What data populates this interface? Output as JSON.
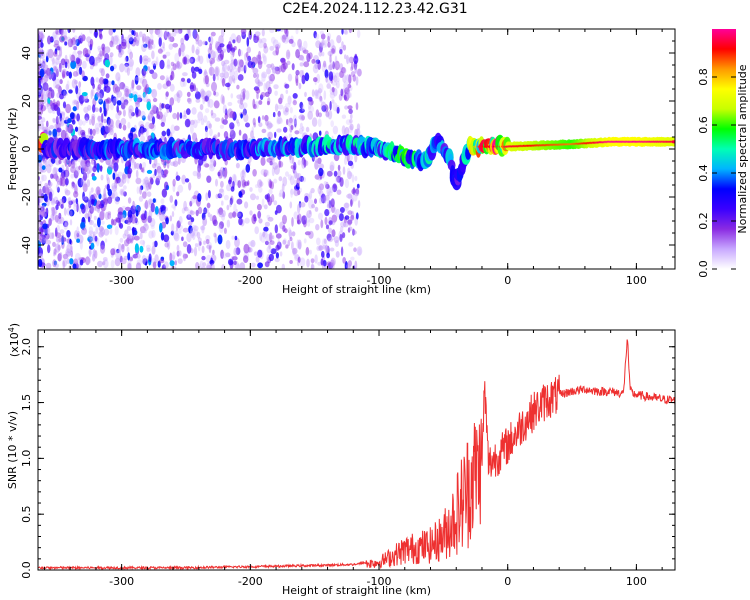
{
  "title": "C2E4.2024.112.23.42.G31",
  "colors": {
    "snr_line": "#ee3030",
    "background": "#ffffff",
    "axis": "#000000",
    "colormap": [
      "#ffffff",
      "#c8a8ff",
      "#8a2be2",
      "#3a00ff",
      "#0000ff",
      "#00b4ff",
      "#00ffb4",
      "#00ff00",
      "#c8ff00",
      "#ffff00",
      "#ff9900",
      "#ff0000",
      "#ff0099"
    ]
  },
  "chart_data": [
    {
      "type": "heatmap",
      "xlabel": "Height of straight line (km)",
      "ylabel": "Frequency (Hz)",
      "xlim": [
        -365,
        130
      ],
      "ylim": [
        -50,
        50
      ],
      "xticks": [
        -300,
        -200,
        -100,
        0,
        100
      ],
      "yticks": [
        -40,
        -20,
        0,
        20,
        40
      ],
      "grid": false,
      "colorbar": {
        "label": "Normalized spectral amplitude",
        "range": [
          0,
          1
        ],
        "ticks": [
          "0.0",
          "0.2",
          "0.4",
          "0.6",
          "0.8"
        ]
      },
      "signal_track": {
        "description_points_x": [
          -360,
          -300,
          -200,
          -150,
          -120,
          -100,
          -80,
          -65,
          -55,
          -45,
          -40,
          -30,
          -20,
          0,
          50,
          80,
          100,
          130
        ],
        "frequency_hz": [
          0,
          0,
          0,
          1,
          2,
          0,
          -3,
          -5,
          3,
          -4,
          -15,
          1,
          1,
          1,
          2,
          3,
          3,
          3
        ],
        "amplitude": [
          0.3,
          0.35,
          0.35,
          0.45,
          0.45,
          0.45,
          0.55,
          0.5,
          0.35,
          0.4,
          0.3,
          0.6,
          0.85,
          0.9,
          0.8,
          0.95,
          0.95,
          0.9
        ]
      },
      "noise_region_x": [
        -365,
        -115
      ],
      "noise_amplitude": [
        0.0,
        0.3
      ]
    },
    {
      "type": "line",
      "xlabel": "Height of straight line (km)",
      "ylabel": "SNR (10 * v/v)",
      "y_multiplier_label": "(x10",
      "y_multiplier_exp": "4",
      "y_multiplier_close": ")",
      "xlim": [
        -365,
        130
      ],
      "ylim": [
        0,
        2.15
      ],
      "xticks": [
        -300,
        -200,
        -100,
        0,
        100
      ],
      "yticks": [
        "0.0",
        "0.5",
        "1.0",
        "1.5",
        "2.0"
      ],
      "ytick_values": [
        0,
        0.5,
        1.0,
        1.5,
        2.0
      ],
      "grid": false,
      "series": [
        {
          "x": [
            -365,
            -300,
            -250,
            -200,
            -150,
            -120,
            -100,
            -90,
            -80,
            -70,
            -60,
            -50,
            -45,
            -40,
            -35,
            -30,
            -25,
            -20,
            -18,
            -15,
            -10,
            -5,
            0,
            10,
            20,
            30,
            40,
            50,
            60,
            70,
            80,
            90,
            93,
            95,
            97,
            100,
            110,
            120,
            130
          ],
          "y": [
            0.01,
            0.01,
            0.01,
            0.02,
            0.03,
            0.04,
            0.07,
            0.12,
            0.18,
            0.2,
            0.22,
            0.3,
            0.4,
            0.5,
            0.62,
            0.75,
            0.9,
            0.95,
            1.65,
            0.95,
            1.0,
            1.05,
            1.12,
            1.28,
            1.42,
            1.52,
            1.57,
            1.6,
            1.62,
            1.6,
            1.6,
            1.58,
            2.1,
            1.62,
            1.58,
            1.57,
            1.55,
            1.53,
            1.52
          ]
        }
      ]
    }
  ]
}
